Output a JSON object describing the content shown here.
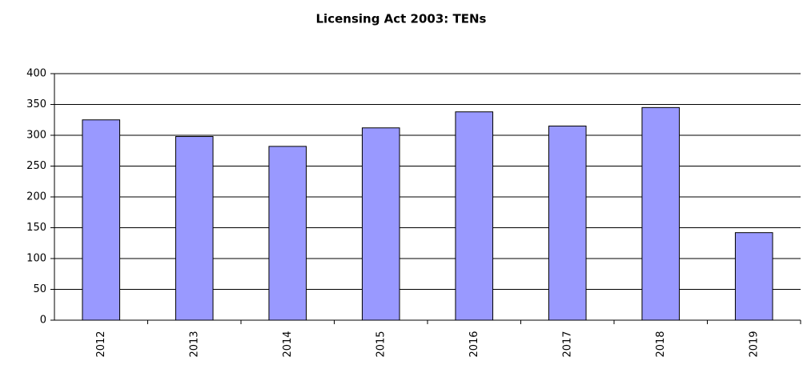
{
  "chart_data": {
    "type": "bar",
    "title": "Licensing Act 2003: TENs",
    "categories": [
      "2012",
      "2013",
      "2014",
      "2015",
      "2016",
      "2017",
      "2018",
      "2019"
    ],
    "values": [
      325,
      298,
      282,
      312,
      338,
      315,
      345,
      142
    ],
    "color": "#9999ff",
    "ylim": [
      0,
      400
    ],
    "yticks": [
      0,
      50,
      100,
      150,
      200,
      250,
      300,
      350,
      400
    ],
    "grid": true
  }
}
